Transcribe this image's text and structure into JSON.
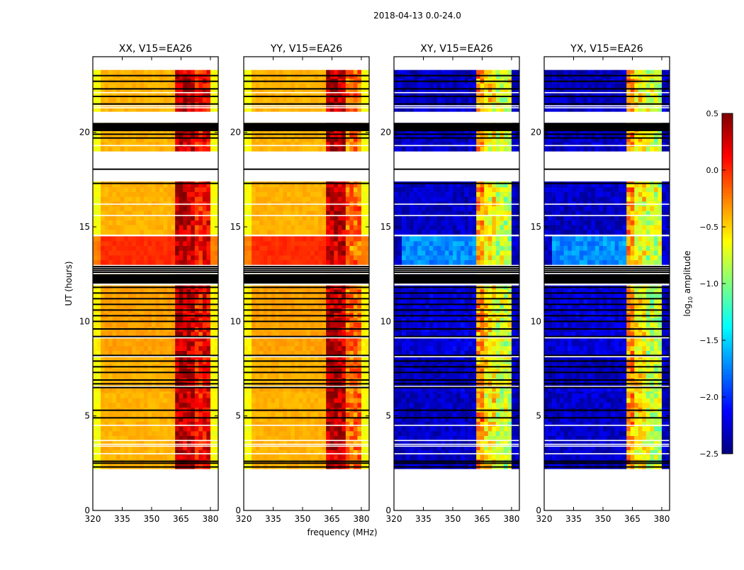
{
  "chart_data": {
    "type": "heatmap",
    "title": "2018-04-13 0.0-24.0",
    "xlabel": "frequency (MHz)",
    "ylabel": "UT (hours)",
    "xlim": [
      320,
      384
    ],
    "ylim": [
      0,
      24
    ],
    "xticks": [
      320,
      335,
      350,
      365,
      380
    ],
    "yticks": [
      0,
      5,
      10,
      15,
      20
    ],
    "colorbar": {
      "label_prefix": "log",
      "label_sub": "10",
      "label_suffix": " amplitude",
      "range": [
        -2.5,
        0.5
      ],
      "ticks": [
        "0.5",
        "0.0",
        "−0.5",
        "−1.0",
        "−1.5",
        "−2.0",
        "−2.5"
      ],
      "tick_values": [
        0.5,
        0.0,
        -0.5,
        -1.0,
        -1.5,
        -2.0,
        -2.5
      ],
      "colormap": "jet"
    },
    "time_segments": [
      {
        "start": 2.2,
        "end": 6.3,
        "offset": 0.0
      },
      {
        "start": 6.3,
        "end": 6.5,
        "offset": 0.05
      },
      {
        "start": 6.6,
        "end": 7.0,
        "offset": 0.0
      },
      {
        "start": 7.0,
        "end": 8.1,
        "offset": 0.0
      },
      {
        "start": 8.2,
        "end": 9.1,
        "offset": 0.05
      },
      {
        "start": 9.2,
        "end": 11.9,
        "offset": 0.05
      },
      {
        "start": 12.1,
        "end": 12.5,
        "offset": 0.0
      },
      {
        "start": 13.0,
        "end": 14.5,
        "offset": 0.4
      },
      {
        "start": 14.6,
        "end": 17.4,
        "offset": 0.0
      },
      {
        "start": 19.0,
        "end": 20.5,
        "offset": 0.0
      },
      {
        "start": 21.1,
        "end": 23.3,
        "offset": 0.0
      }
    ],
    "flagged_black": [
      2.3,
      2.5,
      2.6,
      4.9,
      5.3,
      6.5,
      6.7,
      6.9,
      7.3,
      7.6,
      7.9,
      8.2,
      9.2,
      9.6,
      10.0,
      10.3,
      10.6,
      10.9,
      11.2,
      11.5,
      11.8,
      12.6,
      12.7,
      12.8,
      12.9,
      17.3,
      18.05,
      19.7,
      19.9,
      20.1,
      20.2,
      20.3,
      20.4,
      21.5,
      21.9,
      22.3,
      22.7,
      23.0
    ],
    "flagged_white": [
      3.0,
      3.4,
      3.5,
      3.7,
      4.5,
      15.6,
      16.2,
      19.3,
      21.3,
      21.4,
      22.1
    ],
    "panels": [
      {
        "title": "XX, V15=EA26",
        "base": -0.4,
        "edge": -0.65,
        "rfi": [
          [
            362,
            366,
            0.35
          ],
          [
            367,
            371,
            0.3
          ],
          [
            372,
            375,
            0.05
          ],
          [
            376,
            380,
            0.15
          ]
        ]
      },
      {
        "title": "YY, V15=EA26",
        "base": -0.4,
        "edge": -0.65,
        "rfi": [
          [
            362,
            366,
            0.35
          ],
          [
            367,
            371,
            0.3
          ],
          [
            372,
            375,
            -0.2
          ],
          [
            376,
            380,
            -0.2
          ]
        ]
      },
      {
        "title": "XY, V15=EA26",
        "base": -2.3,
        "edge": -2.3,
        "rfi": [
          [
            362,
            366,
            -0.3
          ],
          [
            367,
            371,
            -0.6
          ],
          [
            372,
            375,
            -0.8
          ],
          [
            376,
            380,
            -0.8
          ]
        ]
      },
      {
        "title": "YX, V15=EA26",
        "base": -2.3,
        "edge": -2.3,
        "rfi": [
          [
            362,
            366,
            -0.3
          ],
          [
            367,
            371,
            -0.6
          ],
          [
            372,
            375,
            -0.8
          ],
          [
            376,
            380,
            -0.8
          ]
        ]
      }
    ]
  }
}
